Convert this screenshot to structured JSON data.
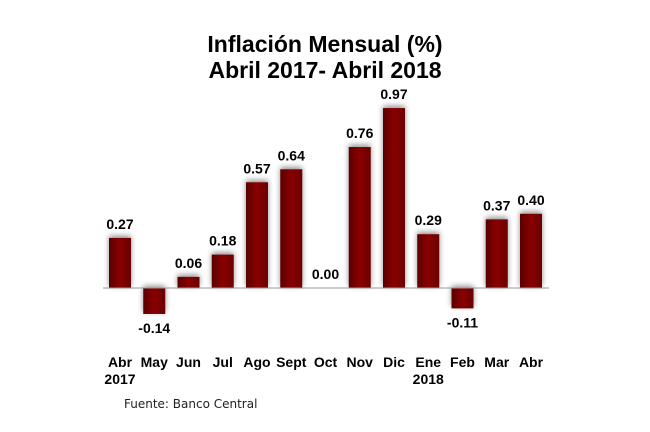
{
  "chart_data": {
    "type": "bar",
    "title": "Inflación Mensual (%)",
    "subtitle": "Abril 2017- Abril 2018",
    "categories": [
      "Abr",
      "May",
      "Jun",
      "Jul",
      "Ago",
      "Sept",
      "Oct",
      "Nov",
      "Dic",
      "Ene",
      "Feb",
      "Mar",
      "Abr"
    ],
    "category_sublabels": [
      "2017",
      "",
      "",
      "",
      "",
      "",
      "",
      "",
      "",
      "2018",
      "",
      "",
      ""
    ],
    "values": [
      0.27,
      -0.14,
      0.06,
      0.18,
      0.57,
      0.64,
      0.0,
      0.76,
      0.97,
      0.29,
      -0.11,
      0.37,
      0.4
    ],
    "data_labels": [
      "0.27",
      "-0.14",
      "0.06",
      "0.18",
      "0.57",
      "0.64",
      "0.00",
      "0.76",
      "0.97",
      "0.29",
      "-0.11",
      "0.37",
      "0.40"
    ],
    "xlabel": "",
    "ylabel": "",
    "grid": false,
    "bar_color": "#7a0000",
    "source": "Fuente: Banco Central"
  }
}
